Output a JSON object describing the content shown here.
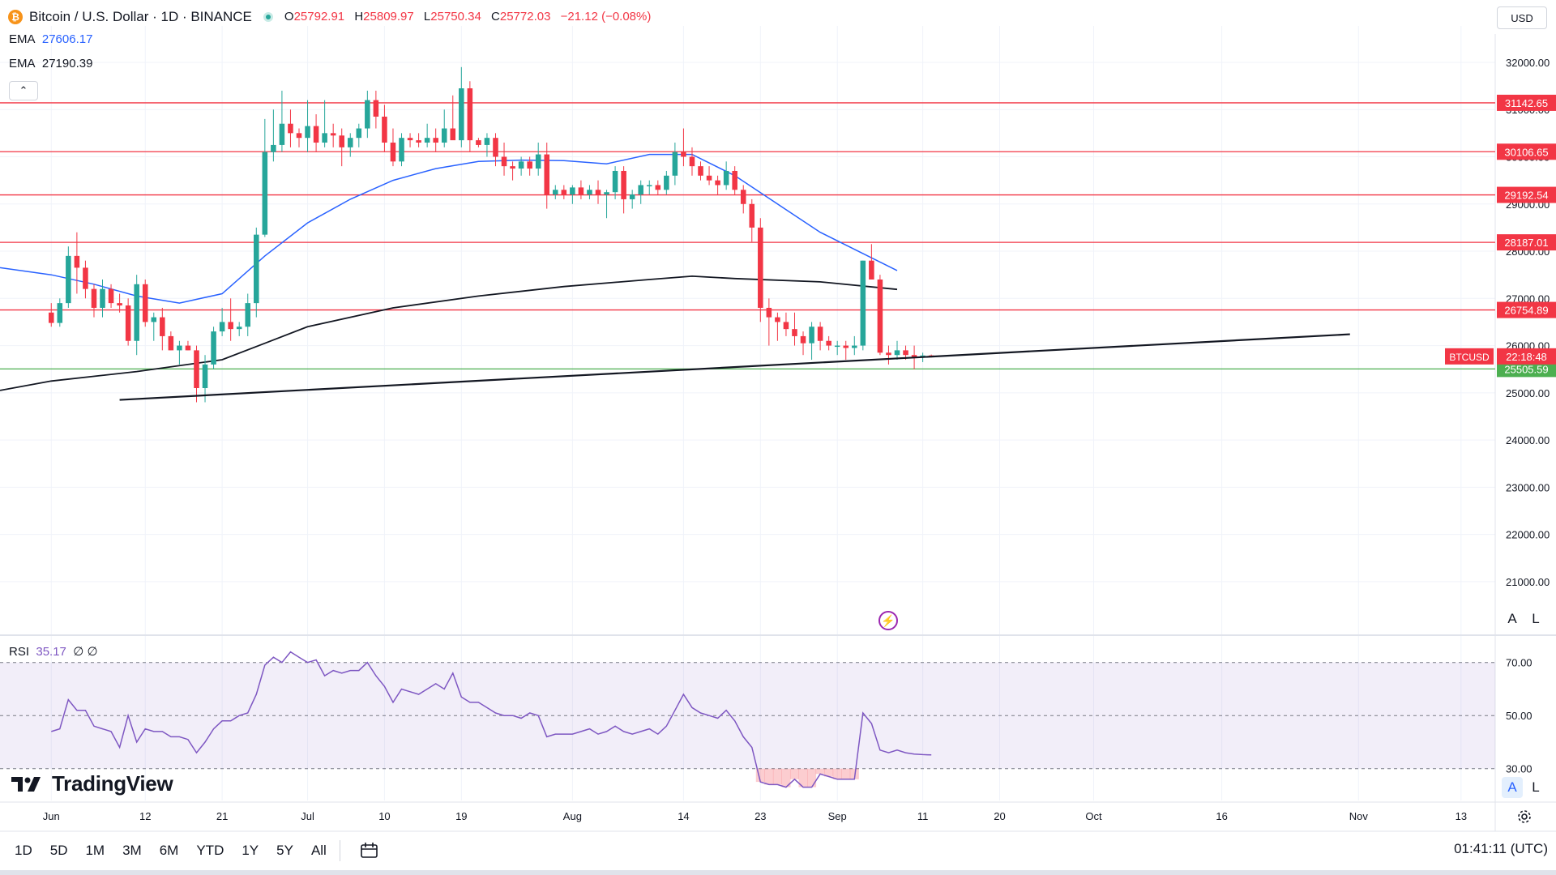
{
  "header": {
    "symbol_title": "Bitcoin / U.S. Dollar · 1D · BINANCE",
    "coin_glyph": "₿",
    "ohlc": {
      "o_label": "O",
      "o": "25792.91",
      "h_label": "H",
      "h": "25809.97",
      "l_label": "L",
      "l": "25750.34",
      "c_label": "C",
      "c": "25772.03",
      "change": "−21.12 (−0.08%)"
    },
    "ema1": {
      "label": "EMA",
      "value": "27606.17",
      "color": "#2962ff"
    },
    "ema2": {
      "label": "EMA",
      "value": "27190.39",
      "color": "#131722"
    },
    "collapse_glyph": "⌃",
    "currency": "USD"
  },
  "chart_data": {
    "type": "candlestick",
    "title": "Bitcoin / U.S. Dollar · 1D · BINANCE",
    "ylim": [
      19900,
      32600
    ],
    "price_ticks": [
      "32000.00",
      "31000.00",
      "30000.00",
      "29000.00",
      "28000.00",
      "27000.00",
      "26000.00",
      "25000.00",
      "24000.00",
      "23000.00",
      "22000.00",
      "21000.00"
    ],
    "x_ticks": [
      {
        "label": "Jun",
        "day": 0
      },
      {
        "label": "12",
        "day": 11
      },
      {
        "label": "21",
        "day": 20
      },
      {
        "label": "Jul",
        "day": 30
      },
      {
        "label": "10",
        "day": 39
      },
      {
        "label": "19",
        "day": 48
      },
      {
        "label": "Aug",
        "day": 61
      },
      {
        "label": "14",
        "day": 74
      },
      {
        "label": "23",
        "day": 83
      },
      {
        "label": "Sep",
        "day": 92
      },
      {
        "label": "11",
        "day": 102
      },
      {
        "label": "20",
        "day": 111
      },
      {
        "label": "Oct",
        "day": 122
      },
      {
        "label": "16",
        "day": 137
      },
      {
        "label": "Nov",
        "day": 153
      },
      {
        "label": "13",
        "day": 165
      }
    ],
    "x_domain": [
      -6,
      169
    ],
    "candles": [
      [
        26700,
        26900,
        26400,
        26480
      ],
      [
        26480,
        27000,
        26400,
        26900
      ],
      [
        26900,
        28100,
        26800,
        27900
      ],
      [
        27900,
        28400,
        27100,
        27650
      ],
      [
        27650,
        27800,
        27000,
        27200
      ],
      [
        27200,
        27300,
        26600,
        26800
      ],
      [
        26800,
        27400,
        26600,
        27200
      ],
      [
        27200,
        27300,
        26800,
        26900
      ],
      [
        26900,
        27100,
        26700,
        26850
      ],
      [
        26850,
        27000,
        26000,
        26100
      ],
      [
        26100,
        27500,
        25800,
        27300
      ],
      [
        27300,
        27400,
        26400,
        26500
      ],
      [
        26500,
        26700,
        26100,
        26600
      ],
      [
        26600,
        26800,
        25900,
        26200
      ],
      [
        26200,
        26300,
        25900,
        25900
      ],
      [
        25900,
        26100,
        25600,
        26000
      ],
      [
        26000,
        26100,
        25900,
        25900
      ],
      [
        25900,
        26000,
        24800,
        25100
      ],
      [
        25100,
        25800,
        24800,
        25600
      ],
      [
        25600,
        26400,
        25500,
        26300
      ],
      [
        26300,
        26800,
        26200,
        26500
      ],
      [
        26500,
        27000,
        26100,
        26350
      ],
      [
        26350,
        26500,
        26200,
        26400
      ],
      [
        26400,
        27100,
        26200,
        26900
      ],
      [
        26900,
        28500,
        26600,
        28350
      ],
      [
        28350,
        30800,
        28300,
        30100
      ],
      [
        30100,
        31000,
        29900,
        30250
      ],
      [
        30250,
        31400,
        30100,
        30700
      ],
      [
        30700,
        31000,
        30200,
        30500
      ],
      [
        30500,
        30600,
        30200,
        30400
      ],
      [
        30400,
        31200,
        30100,
        30650
      ],
      [
        30650,
        30900,
        30100,
        30300
      ],
      [
        30300,
        31200,
        30200,
        30500
      ],
      [
        30500,
        30700,
        30200,
        30450
      ],
      [
        30450,
        30600,
        29800,
        30200
      ],
      [
        30200,
        30500,
        30000,
        30400
      ],
      [
        30400,
        30700,
        30200,
        30600
      ],
      [
        30600,
        31400,
        30400,
        31200
      ],
      [
        31200,
        31400,
        30600,
        30850
      ],
      [
        30850,
        31100,
        30100,
        30300
      ],
      [
        30300,
        30600,
        29800,
        29900
      ],
      [
        29900,
        30500,
        29800,
        30400
      ],
      [
        30400,
        30500,
        30200,
        30350
      ],
      [
        30350,
        30500,
        30200,
        30300
      ],
      [
        30300,
        30700,
        30200,
        30400
      ],
      [
        30400,
        30600,
        30100,
        30300
      ],
      [
        30300,
        31000,
        30200,
        30600
      ],
      [
        30600,
        31300,
        30400,
        30350
      ],
      [
        30350,
        31900,
        30200,
        31450
      ],
      [
        31450,
        31600,
        30100,
        30350
      ],
      [
        30350,
        30400,
        30200,
        30250
      ],
      [
        30250,
        30500,
        30000,
        30400
      ],
      [
        30400,
        30500,
        29800,
        30000
      ],
      [
        30000,
        30300,
        29600,
        29800
      ],
      [
        29800,
        29900,
        29500,
        29750
      ],
      [
        29750,
        30000,
        29600,
        29900
      ],
      [
        29900,
        30000,
        29600,
        29750
      ],
      [
        29750,
        30300,
        29600,
        30050
      ],
      [
        30050,
        30300,
        28900,
        29200
      ],
      [
        29200,
        29400,
        29100,
        29300
      ],
      [
        29300,
        29400,
        29100,
        29200
      ],
      [
        29200,
        29400,
        29000,
        29350
      ],
      [
        29350,
        29500,
        29100,
        29200
      ],
      [
        29200,
        29400,
        29100,
        29300
      ],
      [
        29300,
        29500,
        29000,
        29200
      ],
      [
        29200,
        29300,
        28700,
        29250
      ],
      [
        29250,
        29800,
        29100,
        29700
      ],
      [
        29700,
        29800,
        28800,
        29100
      ],
      [
        29100,
        29300,
        28900,
        29200
      ],
      [
        29200,
        29500,
        29000,
        29400
      ],
      [
        29400,
        29500,
        29200,
        29400
      ],
      [
        29400,
        29500,
        29200,
        29300
      ],
      [
        29300,
        29700,
        29200,
        29600
      ],
      [
        29600,
        30300,
        29400,
        30100
      ],
      [
        30100,
        30600,
        29800,
        30000
      ],
      [
        30000,
        30200,
        29600,
        29800
      ],
      [
        29800,
        29900,
        29500,
        29600
      ],
      [
        29600,
        29800,
        29400,
        29500
      ],
      [
        29500,
        29600,
        29200,
        29400
      ],
      [
        29400,
        29900,
        29300,
        29700
      ],
      [
        29700,
        29800,
        29200,
        29300
      ],
      [
        29300,
        29400,
        28800,
        29000
      ],
      [
        29000,
        29100,
        28200,
        28500
      ],
      [
        28500,
        28700,
        26500,
        26800
      ],
      [
        26800,
        27000,
        26000,
        26600
      ],
      [
        26600,
        26700,
        26100,
        26500
      ],
      [
        26500,
        26700,
        26200,
        26350
      ],
      [
        26350,
        26700,
        26000,
        26200
      ],
      [
        26200,
        26300,
        25800,
        26050
      ],
      [
        26050,
        26500,
        25700,
        26400
      ],
      [
        26400,
        26500,
        25900,
        26100
      ],
      [
        26100,
        26200,
        25900,
        26000
      ],
      [
        26000,
        26100,
        25800,
        26000
      ],
      [
        26000,
        26100,
        25700,
        25950
      ],
      [
        25950,
        26200,
        25800,
        26000
      ],
      [
        26000,
        27800,
        25900,
        27800
      ],
      [
        27800,
        28150,
        27500,
        27400
      ],
      [
        27400,
        27500,
        25800,
        25850
      ],
      [
        25850,
        26000,
        25600,
        25800
      ],
      [
        25800,
        26100,
        25700,
        25900
      ],
      [
        25900,
        26000,
        25700,
        25800
      ],
      [
        25800,
        26000,
        25500,
        25750
      ],
      [
        25750,
        25850,
        25650,
        25790
      ],
      [
        25792,
        25810,
        25750,
        25772
      ]
    ],
    "horizontal_levels": [
      {
        "label": "31142.65",
        "price": 31142.65,
        "color": "#f23645"
      },
      {
        "label": "30106.65",
        "price": 30106.65,
        "color": "#f23645"
      },
      {
        "label": "29192.54",
        "price": 29192.54,
        "color": "#f23645"
      },
      {
        "label": "28187.01",
        "price": 28187.01,
        "color": "#f23645"
      },
      {
        "label": "26754.89",
        "price": 26754.89,
        "color": "#f23645"
      },
      {
        "label": "25505.59",
        "price": 25505.59,
        "color": "#4caf50"
      }
    ],
    "trendline": {
      "start": {
        "day": 8,
        "price": 24850
      },
      "end": {
        "day": 152,
        "price": 26240
      }
    },
    "ema_fast": {
      "color": "#2962ff",
      "points": [
        [
          -6,
          27650
        ],
        [
          0,
          27500
        ],
        [
          5,
          27300
        ],
        [
          10,
          27050
        ],
        [
          15,
          26900
        ],
        [
          20,
          27100
        ],
        [
          25,
          27900
        ],
        [
          30,
          28600
        ],
        [
          35,
          29100
        ],
        [
          40,
          29500
        ],
        [
          45,
          29750
        ],
        [
          50,
          29900
        ],
        [
          55,
          29930
        ],
        [
          60,
          29920
        ],
        [
          65,
          29850
        ],
        [
          70,
          30050
        ],
        [
          75,
          30050
        ],
        [
          80,
          29600
        ],
        [
          85,
          29000
        ],
        [
          90,
          28400
        ],
        [
          95,
          27950
        ],
        [
          99,
          27590
        ]
      ]
    },
    "ema_slow": {
      "color": "#131722",
      "points": [
        [
          -6,
          25050
        ],
        [
          0,
          25250
        ],
        [
          10,
          25450
        ],
        [
          20,
          25700
        ],
        [
          25,
          26050
        ],
        [
          30,
          26400
        ],
        [
          40,
          26800
        ],
        [
          50,
          27050
        ],
        [
          60,
          27250
        ],
        [
          70,
          27400
        ],
        [
          75,
          27470
        ],
        [
          80,
          27420
        ],
        [
          90,
          27350
        ],
        [
          99,
          27190
        ]
      ]
    },
    "price_badge": {
      "symbol": "BTCUSD",
      "countdown": "22:18:48",
      "price": 25772.03,
      "color": "#f23645"
    },
    "rsi": {
      "label": "RSI",
      "value": "35.17",
      "extra1": "∅",
      "extra2": "∅",
      "color": "#7e57c2",
      "ylim": [
        18,
        80
      ],
      "levels": [
        "70.00",
        "50.00",
        "30.00"
      ],
      "values": [
        44,
        45,
        56,
        52,
        52,
        46,
        45,
        44,
        38,
        50,
        40,
        45,
        44,
        44,
        42,
        42,
        41,
        36,
        40,
        45,
        48,
        48,
        50,
        51,
        58,
        69,
        72,
        70,
        74,
        72,
        70,
        71,
        65,
        67,
        66,
        67,
        67,
        70,
        65,
        61,
        55,
        60,
        59,
        58,
        60,
        62,
        60,
        66,
        57,
        55,
        55,
        53,
        51,
        50,
        50,
        49,
        51,
        50,
        42,
        43,
        43,
        43,
        44,
        45,
        43,
        44,
        46,
        44,
        43,
        44,
        45,
        43,
        46,
        52,
        58,
        53,
        51,
        50,
        49,
        52,
        48,
        42,
        38,
        25,
        24,
        24,
        23,
        26,
        23,
        23,
        28,
        27,
        26,
        26,
        26,
        51,
        47,
        37,
        36,
        37,
        36,
        35.5,
        35.3,
        35.17
      ]
    }
  },
  "rsi_icon": "⚡",
  "scale_buttons": {
    "auto": "A",
    "log": "L"
  },
  "logo_text": "TradingView",
  "timeframes": [
    "1D",
    "5D",
    "1M",
    "3M",
    "6M",
    "YTD",
    "1Y",
    "5Y",
    "All"
  ],
  "clock": "01:41:11 (UTC)"
}
